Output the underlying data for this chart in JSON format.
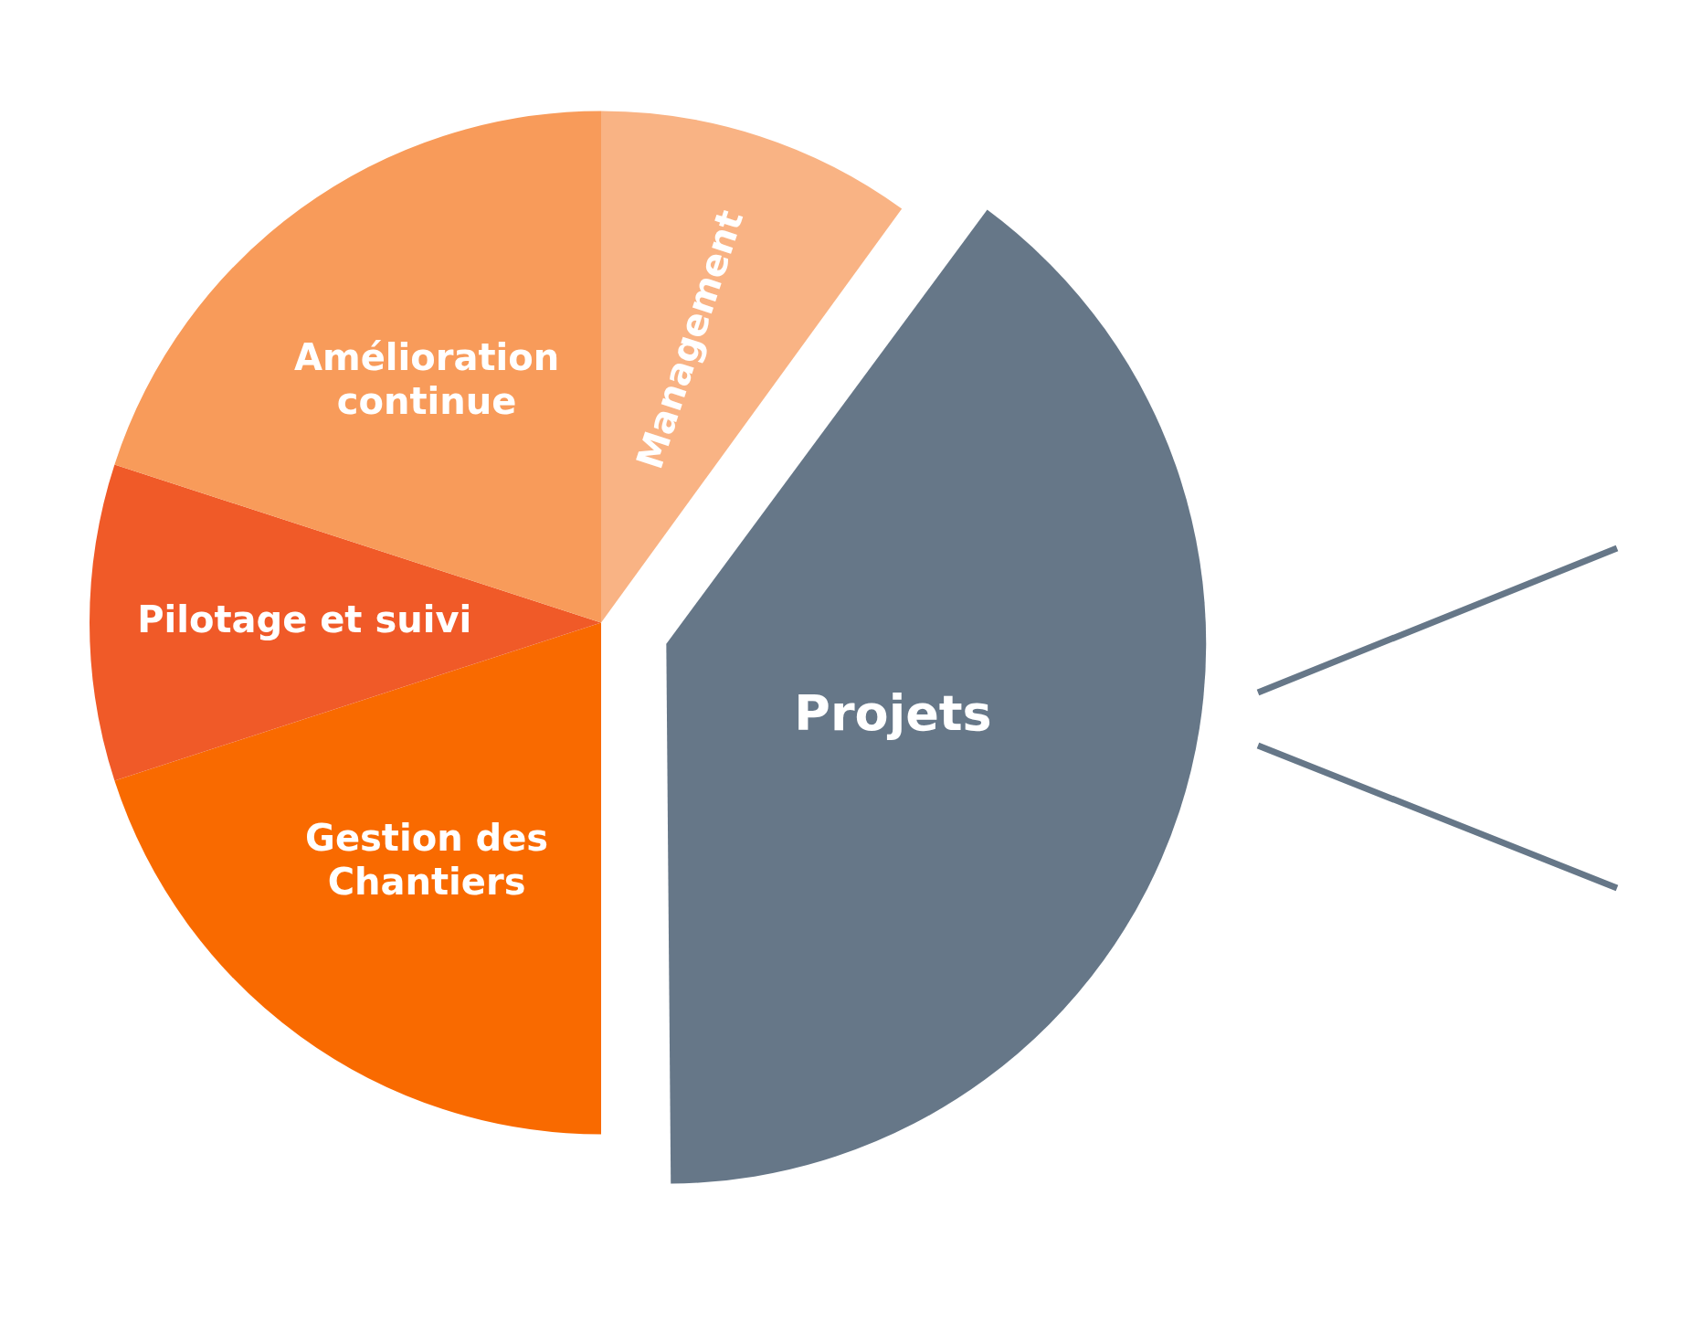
{
  "chart_data": {
    "type": "pie",
    "categories": [
      "Management",
      "Projets",
      "Gestion des Chantiers",
      "Pilotage et suivi",
      "Amélioration continue"
    ],
    "values": [
      10,
      40,
      20,
      10,
      20
    ],
    "colors": [
      "#f9b384",
      "#667788",
      "#f96a00",
      "#f05a28",
      "#f89b5a"
    ],
    "legend": false
  }
}
